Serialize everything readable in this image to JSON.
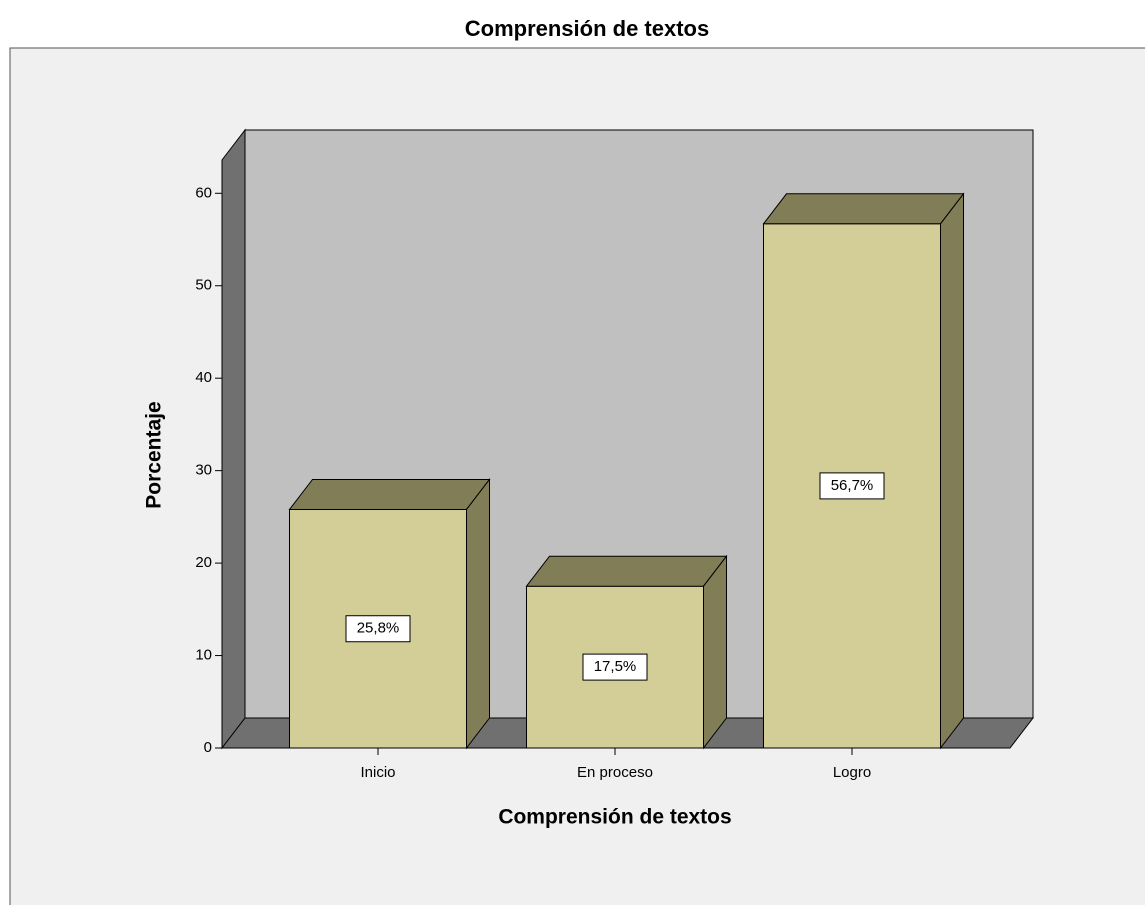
{
  "chart_data": {
    "type": "bar3d",
    "title": "Comprensión de textos",
    "x_label": "Comprensión de textos",
    "y_label": "Porcentaje",
    "categories": [
      "Inicio",
      "En proceso",
      "Logro"
    ],
    "values": [
      25.8,
      17.5,
      56.7
    ],
    "value_labels": [
      "25,8%",
      "17,5%",
      "56,7%"
    ],
    "color": "#d3cd97",
    "ylim": [
      0,
      63.6
    ],
    "yticks": [
      0,
      10,
      20,
      30,
      40,
      50,
      60
    ]
  }
}
